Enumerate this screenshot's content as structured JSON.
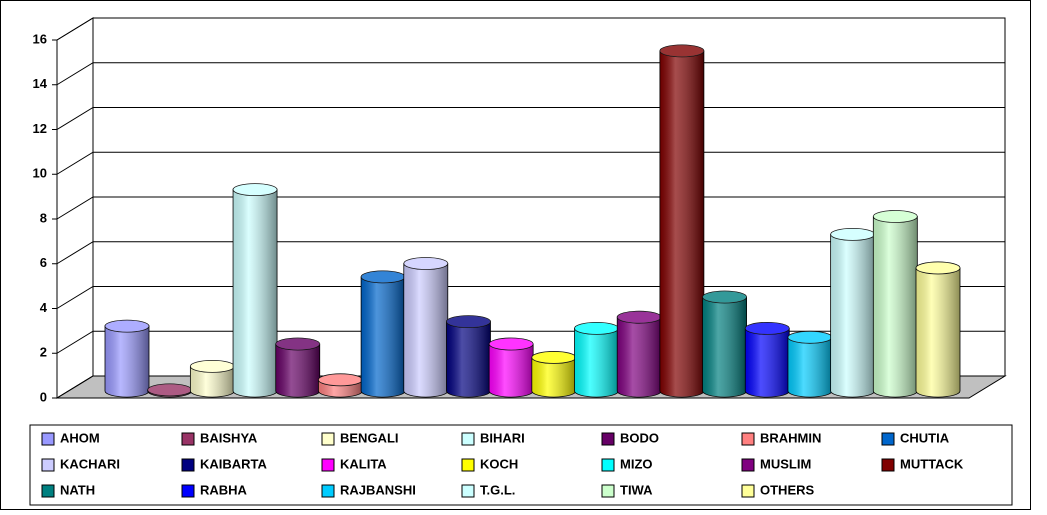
{
  "chart_data": {
    "type": "bar",
    "series": [
      {
        "name": "AHOM",
        "color": "#9999ff",
        "values": [
          2.9
        ]
      },
      {
        "name": "BAISHYA",
        "color": "#993366",
        "values": [
          0.05
        ]
      },
      {
        "name": "BENGALI",
        "color": "#ffffcc",
        "values": [
          1.1
        ]
      },
      {
        "name": "BIHARI",
        "color": "#ccffff",
        "values": [
          9.0
        ]
      },
      {
        "name": "BODO",
        "color": "#660066",
        "values": [
          2.1
        ]
      },
      {
        "name": "BRAHMIN",
        "color": "#ff8080",
        "values": [
          0.5
        ]
      },
      {
        "name": "CHUTIA",
        "color": "#0066cc",
        "values": [
          5.1
        ]
      },
      {
        "name": "KACHARI",
        "color": "#ccccff",
        "values": [
          5.7
        ]
      },
      {
        "name": "KAIBARTA",
        "color": "#000080",
        "values": [
          3.1
        ]
      },
      {
        "name": "KALITA",
        "color": "#ff00ff",
        "values": [
          2.1
        ]
      },
      {
        "name": "KOCH",
        "color": "#ffff00",
        "values": [
          1.5
        ]
      },
      {
        "name": "MIZO",
        "color": "#00ffff",
        "values": [
          2.8
        ]
      },
      {
        "name": "MUSLIM",
        "color": "#800080",
        "values": [
          3.3
        ]
      },
      {
        "name": "MUTTACK",
        "color": "#800000",
        "values": [
          15.2
        ]
      },
      {
        "name": "NATH",
        "color": "#008080",
        "values": [
          4.2
        ]
      },
      {
        "name": "RABHA",
        "color": "#0000ff",
        "values": [
          2.8
        ]
      },
      {
        "name": "RAJBANSHI",
        "color": "#00ccff",
        "values": [
          2.4
        ]
      },
      {
        "name": "T.G.L.",
        "color": "#ccffff",
        "values": [
          7.0
        ]
      },
      {
        "name": "TIWA",
        "color": "#ccffcc",
        "values": [
          7.8
        ]
      },
      {
        "name": "OTHERS",
        "color": "#ffff99",
        "values": [
          5.5
        ]
      }
    ],
    "ylim": [
      0,
      16
    ],
    "yticks": [
      0,
      2,
      4,
      6,
      8,
      10,
      12,
      14,
      16
    ],
    "grid": true,
    "legend": "bottom"
  }
}
